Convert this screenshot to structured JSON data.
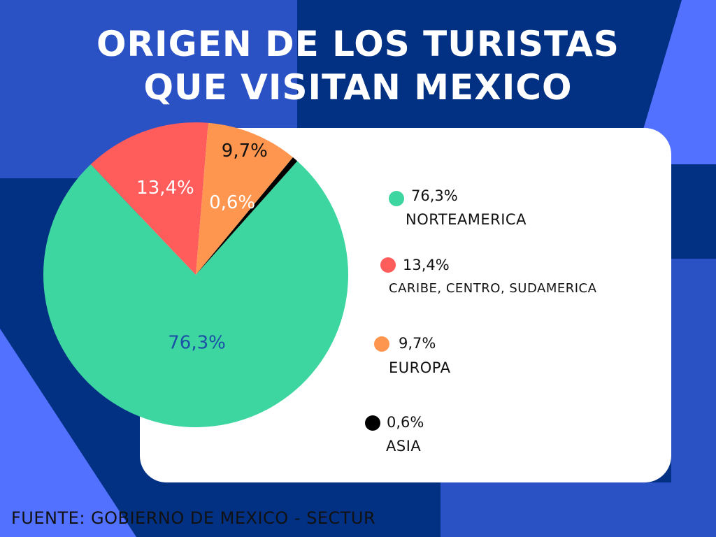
{
  "title_lines": [
    "ORIGEN DE LOS TURISTAS",
    "QUE VISITAN  MEXICO"
  ],
  "colors": {
    "background": "#023184",
    "accent_light": "#5271FF",
    "accent_mid": "#2A52C4",
    "card": "#FFFFFF"
  },
  "chart_data": {
    "type": "pie",
    "title": "ORIGEN DE LOS TURISTAS QUE VISITAN  MEXICO",
    "slices": [
      {
        "label": "NORTEAMERICA",
        "value": 76.3,
        "value_label": "76,3%",
        "color": "#3DD6A0"
      },
      {
        "label": "CARIBE, CENTRO, SUDAMERICA",
        "value": 13.4,
        "value_label": "13,4%",
        "color": "#FF5C5C"
      },
      {
        "label": "EUROPA",
        "value": 9.7,
        "value_label": "9,7%",
        "color": "#FF9650"
      },
      {
        "label": "ASIA",
        "value": 0.6,
        "value_label": "0,6%",
        "color": "#000000"
      }
    ],
    "legend_placement": "right"
  },
  "legend": [
    {
      "value": "76,3%",
      "label": "NORTEAMERICA",
      "color": "#3DD6A0"
    },
    {
      "value": "13,4%",
      "label": "CARIBE, CENTRO, SUDAMERICA",
      "color": "#FF5C5C"
    },
    {
      "value": "9,7%",
      "label": "EUROPA",
      "color": "#FF9650"
    },
    {
      "value": "0,6%",
      "label": "ASIA",
      "color": "#000000"
    }
  ],
  "footer": "FUENTE: GOBIERNO DE MEXICO - SECTUR"
}
